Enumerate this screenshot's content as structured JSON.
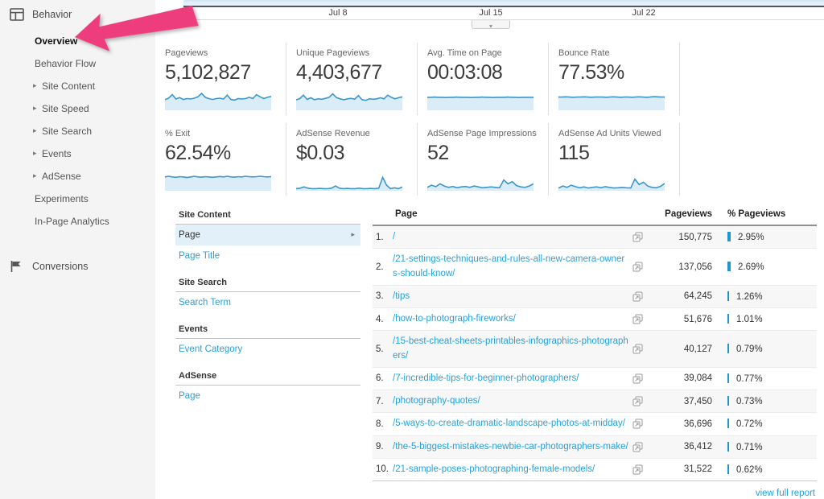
{
  "colors": {
    "link_blue": "#29a0da",
    "bar_blue": "#1e96d3",
    "spark_line": "#3b97cf",
    "spark_fill": "#daecf8",
    "arrow_pink": "#ee3d7c",
    "selected_row_bg": "#e2f0fa",
    "sidebar_bg": "#f4f4f4"
  },
  "sidebar": {
    "section_label": "Behavior",
    "items": [
      {
        "label": "Overview",
        "active": true,
        "expandable": false
      },
      {
        "label": "Behavior Flow",
        "active": false,
        "expandable": false
      },
      {
        "label": "Site Content",
        "active": false,
        "expandable": true
      },
      {
        "label": "Site Speed",
        "active": false,
        "expandable": true
      },
      {
        "label": "Site Search",
        "active": false,
        "expandable": true
      },
      {
        "label": "Events",
        "active": false,
        "expandable": true
      },
      {
        "label": "AdSense",
        "active": false,
        "expandable": true
      },
      {
        "label": "Experiments",
        "active": false,
        "expandable": false
      },
      {
        "label": "In-Page Analytics",
        "active": false,
        "expandable": false
      }
    ],
    "conversions_label": "Conversions"
  },
  "timeline": {
    "ticks": [
      "...",
      "Jul 8",
      "Jul 15",
      "Jul 22"
    ],
    "expander_icon": "chevron-down"
  },
  "metrics": [
    {
      "label": "Pageviews",
      "value": "5,102,827",
      "spark": [
        45,
        52,
        68,
        48,
        55,
        46,
        50,
        48,
        52,
        58,
        74,
        56,
        50,
        46,
        50,
        52,
        48,
        66,
        46,
        43,
        50,
        48,
        50,
        56,
        50,
        68,
        58,
        50,
        56,
        60
      ]
    },
    {
      "label": "Unique Pageviews",
      "value": "4,403,677",
      "spark": [
        44,
        50,
        66,
        46,
        54,
        45,
        49,
        47,
        51,
        56,
        72,
        55,
        49,
        45,
        49,
        51,
        47,
        64,
        45,
        42,
        49,
        47,
        49,
        54,
        49,
        66,
        56,
        49,
        54,
        58
      ]
    },
    {
      "label": "Avg. Time on Page",
      "value": "00:03:08",
      "spark": [
        56,
        56,
        57,
        56,
        56,
        55,
        56,
        56,
        57,
        56,
        56,
        56,
        55,
        56,
        56,
        57,
        56,
        56,
        55,
        56,
        56,
        56,
        57,
        56,
        56,
        55,
        56,
        56,
        56,
        56
      ]
    },
    {
      "label": "Bounce Rate",
      "value": "77.53%",
      "spark": [
        57,
        57,
        58,
        57,
        56,
        57,
        57,
        58,
        57,
        56,
        57,
        57,
        57,
        56,
        57,
        58,
        57,
        56,
        57,
        57,
        56,
        57,
        58,
        57,
        56,
        57,
        59,
        58,
        57,
        57
      ]
    },
    {
      "label": "% Exit",
      "value": "62.54%",
      "spark": [
        60,
        63,
        60,
        58,
        61,
        60,
        57,
        60,
        63,
        60,
        59,
        61,
        60,
        58,
        60,
        62,
        60,
        63,
        60,
        59,
        61,
        60,
        63,
        61,
        60,
        61,
        63,
        61,
        60,
        61
      ]
    },
    {
      "label": "AdSense Revenue",
      "value": "$0.03",
      "spark": [
        6,
        8,
        14,
        8,
        6,
        6,
        7,
        6,
        6,
        8,
        18,
        8,
        6,
        7,
        6,
        6,
        8,
        6,
        6,
        7,
        6,
        8,
        58,
        22,
        6,
        10,
        6,
        14
      ]
    },
    {
      "label": "AdSense Page Impressions",
      "value": "52",
      "spark": [
        12,
        22,
        15,
        28,
        18,
        12,
        16,
        10,
        14,
        16,
        12,
        18,
        14,
        10,
        12,
        14,
        12,
        10,
        46,
        28,
        38,
        20,
        14,
        12,
        18,
        28
      ]
    },
    {
      "label": "AdSense Ad Units Viewed",
      "value": "115",
      "spark": [
        8,
        18,
        12,
        22,
        15,
        10,
        14,
        9,
        12,
        14,
        10,
        15,
        12,
        9,
        10,
        12,
        10,
        9,
        50,
        25,
        36,
        18,
        12,
        10,
        16,
        30
      ]
    }
  ],
  "picker": {
    "groups": [
      {
        "header": "Site Content",
        "items": [
          {
            "label": "Page",
            "selected": true
          },
          {
            "label": "Page Title",
            "selected": false
          }
        ]
      },
      {
        "header": "Site Search",
        "items": [
          {
            "label": "Search Term",
            "selected": false
          }
        ]
      },
      {
        "header": "Events",
        "items": [
          {
            "label": "Event Category",
            "selected": false
          }
        ]
      },
      {
        "header": "AdSense",
        "items": [
          {
            "label": "Page",
            "selected": false
          }
        ]
      }
    ]
  },
  "table": {
    "columns": [
      "Page",
      "Pageviews",
      "% Pageviews"
    ],
    "rows": [
      {
        "rank": "1.",
        "page": "/",
        "pageviews": "150,775",
        "pct": "2.95%"
      },
      {
        "rank": "2.",
        "page": "/21-settings-techniques-and-rules-all-new-camera-owners-should-know/",
        "pageviews": "137,056",
        "pct": "2.69%"
      },
      {
        "rank": "3.",
        "page": "/tips",
        "pageviews": "64,245",
        "pct": "1.26%"
      },
      {
        "rank": "4.",
        "page": "/how-to-photograph-fireworks/",
        "pageviews": "51,676",
        "pct": "1.01%"
      },
      {
        "rank": "5.",
        "page": "/15-best-cheat-sheets-printables-infographics-photographers/",
        "pageviews": "40,127",
        "pct": "0.79%"
      },
      {
        "rank": "6.",
        "page": "/7-incredible-tips-for-beginner-photographers/",
        "pageviews": "39,084",
        "pct": "0.77%"
      },
      {
        "rank": "7.",
        "page": "/photography-quotes/",
        "pageviews": "37,450",
        "pct": "0.73%"
      },
      {
        "rank": "8.",
        "page": "/5-ways-to-create-dramatic-landscape-photos-at-midday/",
        "pageviews": "36,696",
        "pct": "0.72%"
      },
      {
        "rank": "9.",
        "page": "/the-5-biggest-mistakes-newbie-car-photographers-make/",
        "pageviews": "36,412",
        "pct": "0.71%"
      },
      {
        "rank": "10.",
        "page": "/21-sample-poses-photographing-female-models/",
        "pageviews": "31,522",
        "pct": "0.62%"
      }
    ],
    "footer_link": "view full report"
  }
}
